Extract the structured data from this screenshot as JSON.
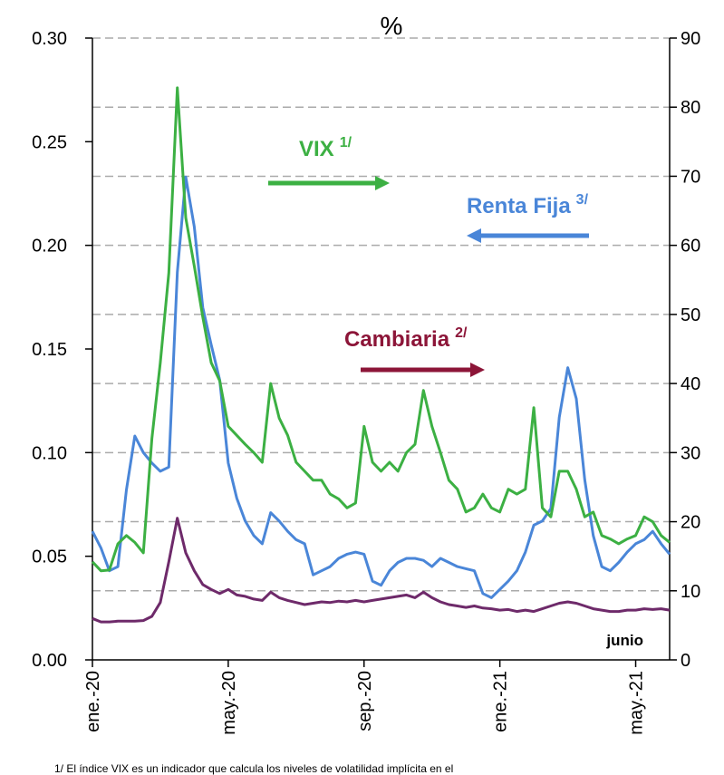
{
  "chart_data": {
    "type": "line",
    "title": "%",
    "categories": [
      "ene.-20",
      null,
      null,
      null,
      null,
      null,
      null,
      null,
      null,
      null,
      null,
      null,
      null,
      null,
      null,
      null,
      "may.-20",
      null,
      null,
      null,
      null,
      null,
      null,
      null,
      null,
      null,
      null,
      null,
      null,
      null,
      null,
      null,
      "sep.-20",
      null,
      null,
      null,
      null,
      null,
      null,
      null,
      null,
      null,
      null,
      null,
      null,
      null,
      null,
      null,
      "ene.-21",
      null,
      null,
      null,
      null,
      null,
      null,
      null,
      null,
      null,
      null,
      null,
      null,
      null,
      null,
      null,
      "may.-21",
      null,
      null,
      null,
      null
    ],
    "series": [
      {
        "name": "Renta Fija",
        "sup": "3/",
        "color": "#4a86d8",
        "axis": "y",
        "values": [
          0.062,
          0.054,
          0.043,
          0.045,
          0.082,
          0.108,
          0.1,
          0.095,
          0.091,
          0.093,
          0.187,
          0.233,
          0.209,
          0.17,
          0.152,
          0.135,
          0.095,
          0.078,
          0.067,
          0.06,
          0.056,
          0.071,
          0.067,
          0.062,
          0.058,
          0.056,
          0.041,
          0.043,
          0.045,
          0.049,
          0.051,
          0.052,
          0.051,
          0.038,
          0.036,
          0.043,
          0.047,
          0.049,
          0.049,
          0.048,
          0.045,
          0.049,
          0.047,
          0.045,
          0.044,
          0.043,
          0.032,
          0.03,
          0.034,
          0.038,
          0.043,
          0.052,
          0.065,
          0.067,
          0.073,
          0.117,
          0.141,
          0.126,
          0.087,
          0.06,
          0.045,
          0.043,
          0.047,
          0.052,
          0.056,
          0.058,
          0.062,
          0.056,
          0.051
        ]
      },
      {
        "name": "VIX",
        "sup": "1/",
        "color": "#3cb043",
        "axis": "y2",
        "values": [
          14.2,
          12.9,
          13,
          16.8,
          18,
          17,
          15.5,
          32,
          43,
          56,
          82.8,
          64,
          57,
          49.6,
          43,
          40.4,
          33.8,
          32.5,
          31.2,
          30,
          28.6,
          40,
          35,
          32.5,
          28.6,
          27.3,
          26,
          26,
          24,
          23.3,
          22,
          22.7,
          33.8,
          28.6,
          27.3,
          28.6,
          27.3,
          30,
          31.2,
          39,
          33.8,
          30,
          26,
          24.7,
          21.4,
          22,
          24,
          22,
          21.4,
          24.7,
          24,
          24.7,
          36.5,
          22,
          20.7,
          27.3,
          27.3,
          24.7,
          20.7,
          21.4,
          18,
          17.5,
          16.8,
          17.5,
          18,
          20.7,
          20,
          18,
          17
        ]
      },
      {
        "name": "Cambiaria",
        "sup": "2/",
        "color": "#6e2a6a",
        "axis": "y2",
        "values": [
          6,
          5.5,
          5.5,
          5.6,
          5.6,
          5.6,
          5.7,
          6.3,
          8.3,
          14.2,
          20.5,
          15.5,
          12.9,
          10.9,
          10.2,
          9.6,
          10.2,
          9.4,
          9.2,
          8.8,
          8.6,
          9.8,
          9.0,
          8.6,
          8.3,
          8.0,
          8.2,
          8.4,
          8.3,
          8.5,
          8.4,
          8.6,
          8.4,
          8.6,
          8.8,
          9.0,
          9.2,
          9.4,
          9.0,
          9.8,
          9.0,
          8.4,
          8.0,
          7.8,
          7.6,
          7.8,
          7.5,
          7.4,
          7.2,
          7.3,
          7.0,
          7.2,
          7.0,
          7.4,
          7.8,
          8.2,
          8.4,
          8.2,
          7.8,
          7.4,
          7.2,
          7.0,
          7.0,
          7.2,
          7.2,
          7.4,
          7.3,
          7.4,
          7.2
        ]
      }
    ],
    "annotation_colors": [
      "#4a86d8",
      "#3cb043",
      "#8c1538"
    ],
    "note": "junio",
    "footnote": "1/ El índice VIX es un indicador que calcula los niveles de volatilidad implícita en el",
    "ylim": [
      0,
      0.3
    ],
    "yticks": [
      {
        "value": 0,
        "label": "0.00"
      },
      {
        "value": 0.05,
        "label": "0.05"
      },
      {
        "value": 0.1,
        "label": "0.10"
      },
      {
        "value": 0.15,
        "label": "0.15"
      },
      {
        "value": 0.2,
        "label": "0.20"
      },
      {
        "value": 0.25,
        "label": "0.25"
      },
      {
        "value": 0.3,
        "label": "0.30"
      }
    ],
    "y2lim": [
      0,
      90
    ],
    "y2ticks": [
      0,
      10,
      20,
      30,
      40,
      50,
      60,
      70,
      80,
      90
    ],
    "grid": true
  }
}
